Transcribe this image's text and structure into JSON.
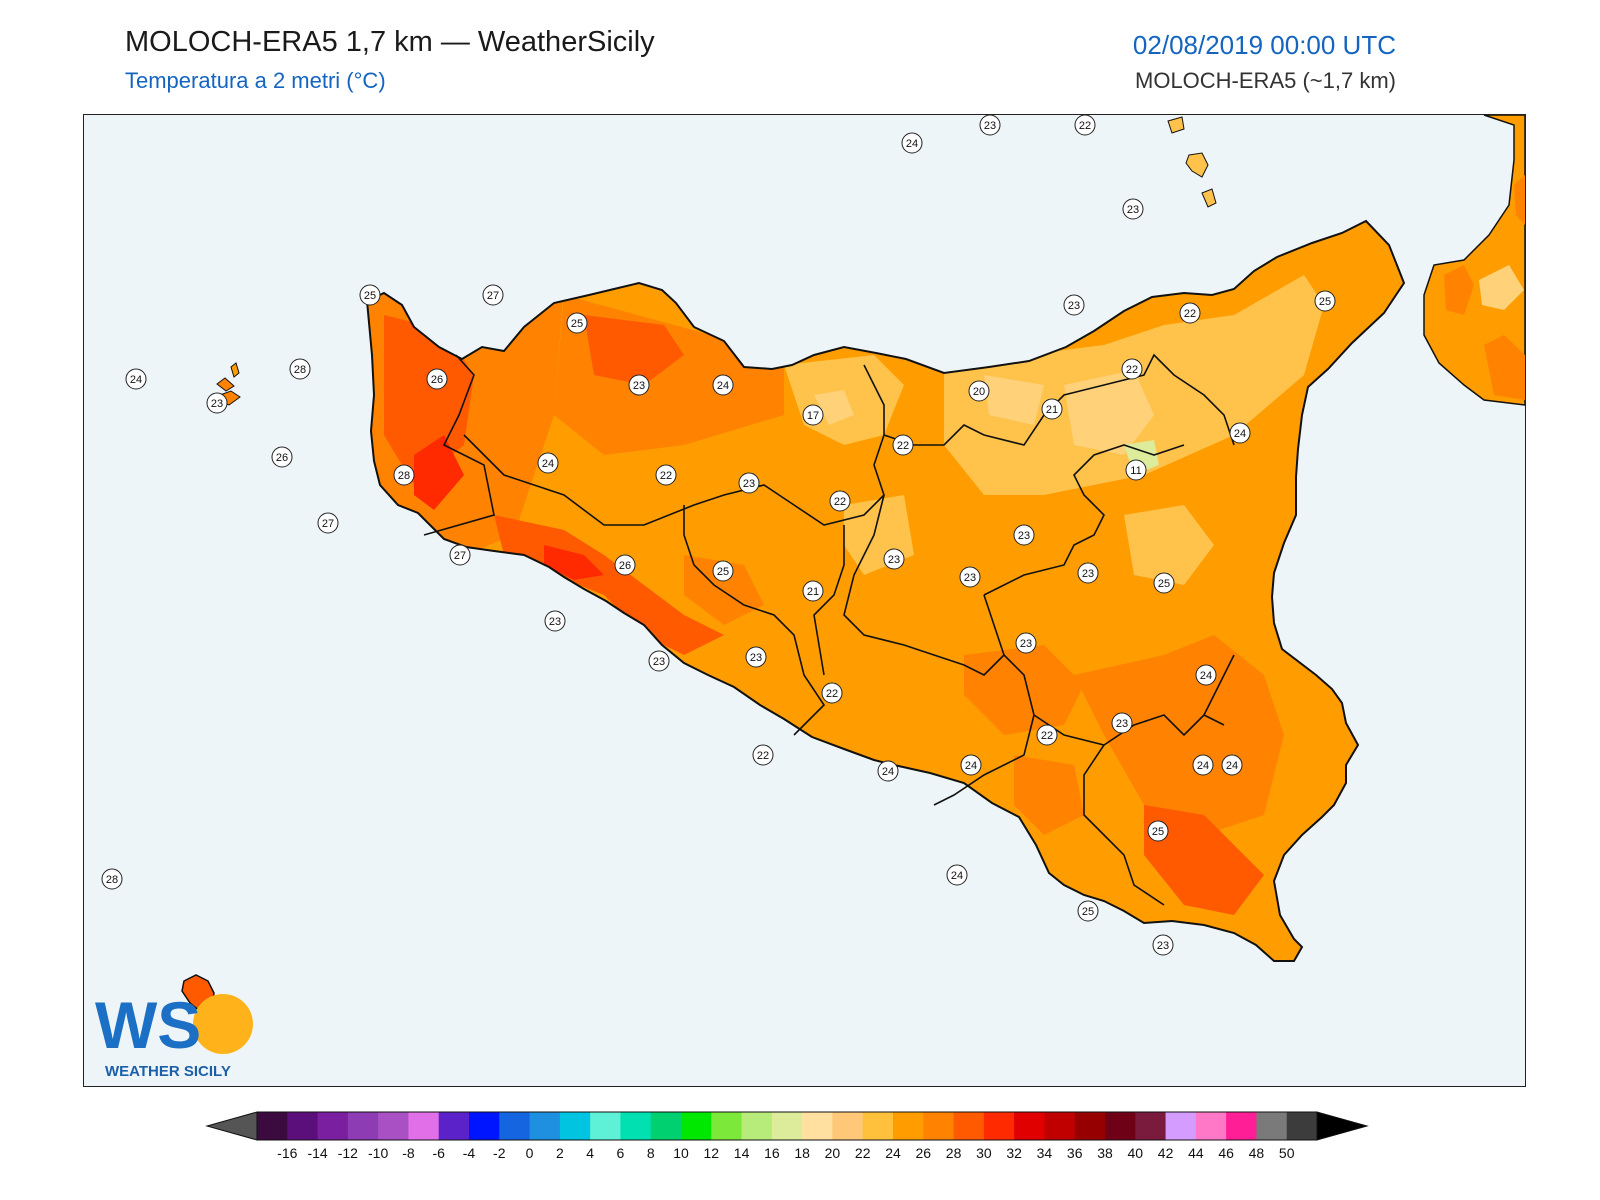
{
  "header": {
    "title": "MOLOCH-ERA5 1,7 km — WeatherSicily",
    "subtitle": "Temperatura a 2 metri (°C)",
    "datetime": "02/08/2019 00:00 UTC",
    "model": "MOLOCH-ERA5 (~1,7 km)"
  },
  "logo": {
    "letters": "WS",
    "text": "WEATHER SICILY"
  },
  "colors": {
    "sea": "#eef5f9",
    "t17_20": "#ffd27a",
    "t20_22": "#ffc24a",
    "t22_24": "#ff9d00",
    "t24_26": "#ff8200",
    "t26_28": "#ff5a00",
    "t28_30": "#ff2a00"
  },
  "colorbar": {
    "ticks": [
      "-16",
      "-14",
      "-12",
      "-10",
      "-8",
      "-6",
      "-4",
      "-2",
      "0",
      "2",
      "4",
      "6",
      "8",
      "10",
      "12",
      "14",
      "16",
      "18",
      "20",
      "22",
      "24",
      "26",
      "28",
      "30",
      "32",
      "34",
      "36",
      "38",
      "40",
      "42",
      "44",
      "46",
      "48",
      "50"
    ],
    "colors": [
      "#3b0a3f",
      "#5a0f7a",
      "#7a1fa0",
      "#8e3cb4",
      "#a850c4",
      "#e06fe8",
      "#5a22c8",
      "#0015ff",
      "#1565e0",
      "#1f8fe0",
      "#00c4e0",
      "#5ff0d8",
      "#00e0b0",
      "#00d070",
      "#00e800",
      "#7ce83a",
      "#b8ec7a",
      "#dcec9a",
      "#ffe0a0",
      "#ffc878",
      "#ffc13c",
      "#ff9d00",
      "#ff8200",
      "#ff5a00",
      "#ff2a00",
      "#e00000",
      "#c00000",
      "#960000",
      "#700016",
      "#7a1a3c",
      "#d49cff",
      "#ff78c8",
      "#ff1e96",
      "#7a7a7a",
      "#3c3c3c"
    ]
  },
  "stations": [
    {
      "t": "24"
    },
    {
      "t": "23"
    },
    {
      "t": "22"
    },
    {
      "t": "23"
    },
    {
      "t": "25"
    },
    {
      "t": "27"
    },
    {
      "t": "25"
    },
    {
      "t": "28"
    },
    {
      "t": "26"
    },
    {
      "t": "24"
    },
    {
      "t": "23"
    },
    {
      "t": "23"
    },
    {
      "t": "24"
    },
    {
      "t": "17"
    },
    {
      "t": "20"
    },
    {
      "t": "22"
    },
    {
      "t": "23"
    },
    {
      "t": "22"
    },
    {
      "t": "25"
    },
    {
      "t": "26"
    },
    {
      "t": "28"
    },
    {
      "t": "24"
    },
    {
      "t": "22"
    },
    {
      "t": "23"
    },
    {
      "t": "22"
    },
    {
      "t": "21"
    },
    {
      "t": "11"
    },
    {
      "t": "24"
    },
    {
      "t": "22"
    },
    {
      "t": "27"
    },
    {
      "t": "27"
    },
    {
      "t": "26"
    },
    {
      "t": "25"
    },
    {
      "t": "21"
    },
    {
      "t": "23"
    },
    {
      "t": "23"
    },
    {
      "t": "23"
    },
    {
      "t": "23"
    },
    {
      "t": "25"
    },
    {
      "t": "23"
    },
    {
      "t": "23"
    },
    {
      "t": "23"
    },
    {
      "t": "23"
    },
    {
      "t": "22"
    },
    {
      "t": "24"
    },
    {
      "t": "22"
    },
    {
      "t": "24"
    },
    {
      "t": "24"
    },
    {
      "t": "22"
    },
    {
      "t": "23"
    },
    {
      "t": "24"
    },
    {
      "t": "24"
    },
    {
      "t": "25"
    },
    {
      "t": "24"
    },
    {
      "t": "25"
    },
    {
      "t": "23"
    },
    {
      "t": "28"
    }
  ]
}
